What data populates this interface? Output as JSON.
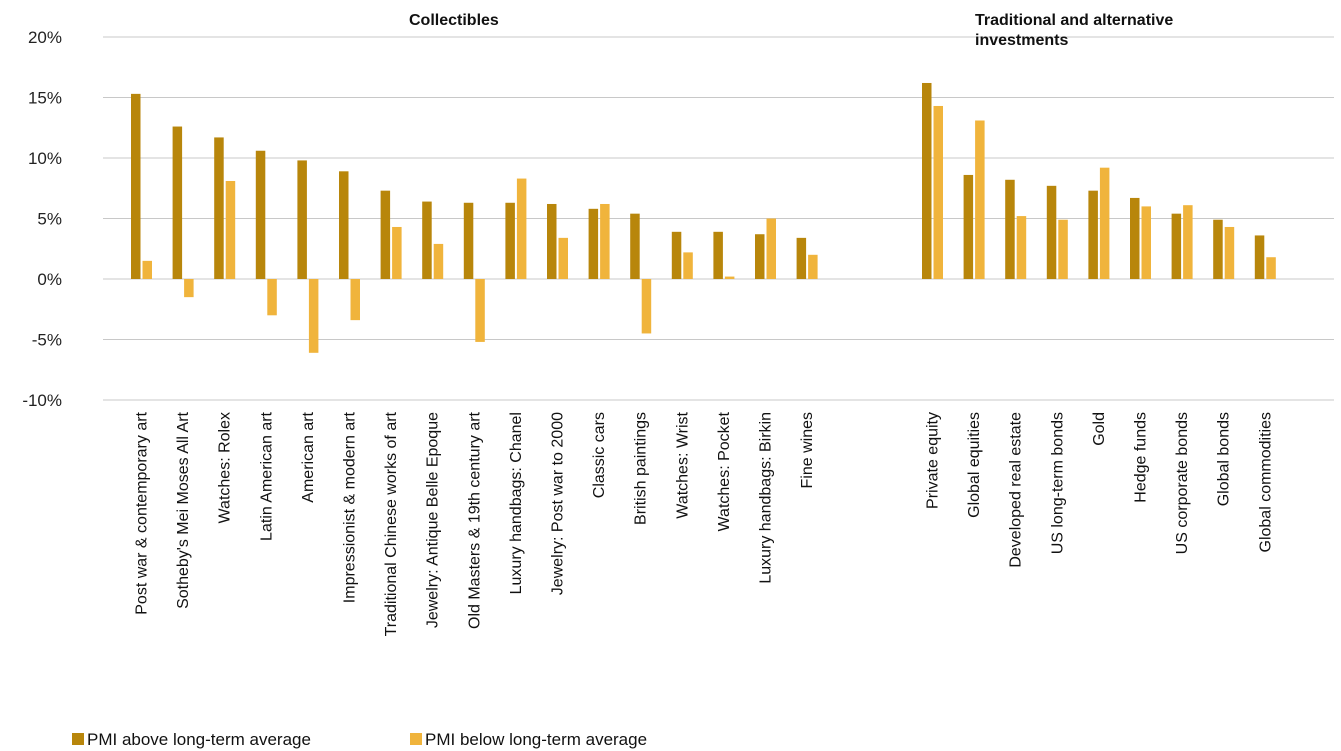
{
  "chart_data": {
    "type": "bar",
    "group_titles": [
      {
        "lines": [
          "Collectibles"
        ]
      },
      {
        "lines": [
          "Traditional and alternative",
          "investments"
        ]
      }
    ],
    "ylim": [
      -10,
      20
    ],
    "yticks": [
      20,
      15,
      10,
      5,
      0,
      -5,
      -10
    ],
    "ytick_labels": [
      "20%",
      "15%",
      "10%",
      "5%",
      "0%",
      "-5%",
      "-10%"
    ],
    "grid": true,
    "legend_position": "bottom-left",
    "series": [
      {
        "name": "PMI above long-term average",
        "color": "#b8860b"
      },
      {
        "name": "PMI below long-term average",
        "color": "#f0b43c"
      }
    ],
    "groups": [
      {
        "categories": [
          "Post war & contemporary art",
          "Sotheby's Mei Moses All Art",
          "Watches: Rolex",
          "Latin American art",
          "American art",
          "Impressionist & modern art",
          "Traditional Chinese works of art",
          "Jewelry: Antique Belle Epoque",
          "Old Masters & 19th century art",
          "Luxury handbags: Chanel",
          "Jewelry: Post war to 2000",
          "Classic cars",
          "British paintings",
          "Watches: Wrist",
          "Watches: Pocket",
          "Luxury handbags: Birkin",
          "Fine wines"
        ],
        "above": [
          15.3,
          12.6,
          11.7,
          10.6,
          9.8,
          8.9,
          7.3,
          6.4,
          6.3,
          6.3,
          6.2,
          5.8,
          5.4,
          3.9,
          3.9,
          3.7,
          3.4
        ],
        "below": [
          1.5,
          -1.5,
          8.1,
          -3.0,
          -6.1,
          -3.4,
          4.3,
          2.9,
          -5.2,
          8.3,
          3.4,
          6.2,
          -4.5,
          2.2,
          0.2,
          5.0,
          2.0
        ]
      },
      {
        "categories": [
          "Private equity",
          "Global equities",
          "Developed real estate",
          "US long-term bonds",
          "Gold",
          "Hedge funds",
          "US corporate bonds",
          "Global bonds",
          "Global commodities"
        ],
        "above": [
          16.2,
          8.6,
          8.2,
          7.7,
          7.3,
          6.7,
          5.4,
          4.9,
          3.6
        ],
        "below": [
          14.3,
          13.1,
          5.2,
          4.9,
          9.2,
          6.0,
          6.1,
          4.3,
          1.8
        ]
      }
    ]
  }
}
